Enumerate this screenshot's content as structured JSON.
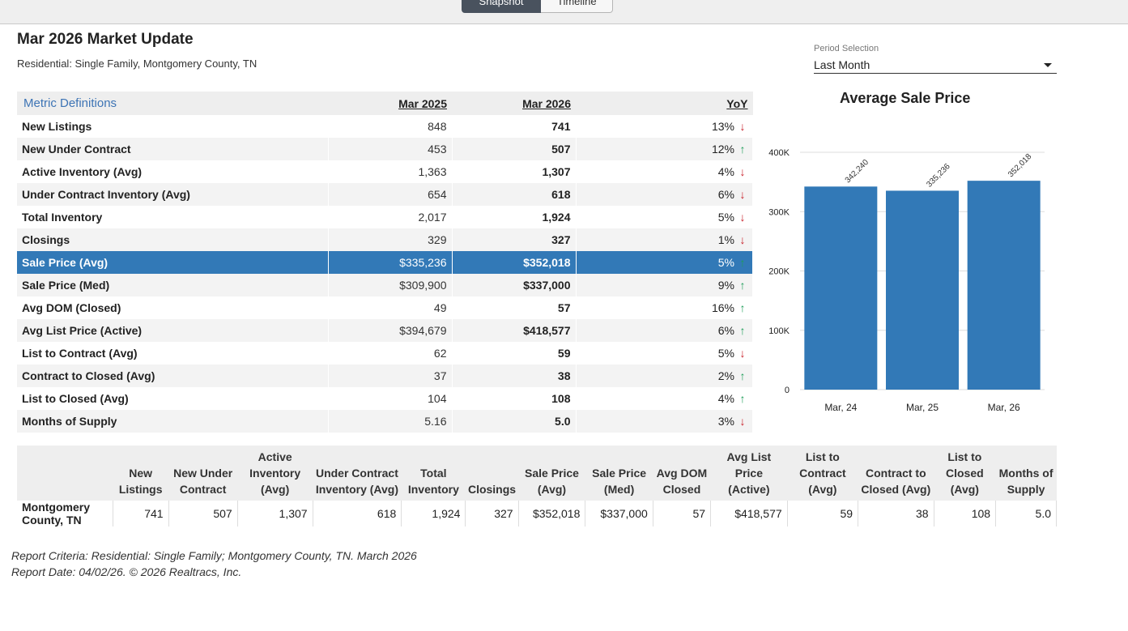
{
  "tabs": [
    {
      "label": "Snapshot",
      "active": true
    },
    {
      "label": "Timeline",
      "active": false
    }
  ],
  "header": {
    "title": "Mar 2026 Market Update",
    "subtitle": "Residential: Single Family, Montgomery County, TN"
  },
  "period": {
    "label": "Period Selection",
    "value": "Last Month"
  },
  "metrics": {
    "headers": {
      "definitions": "Metric Definitions",
      "prev": "Mar 2025",
      "cur": "Mar 2026",
      "yoy": "YoY"
    },
    "rows": [
      {
        "name": "New Listings",
        "prev": "848",
        "cur": "741",
        "yoy": "13%",
        "dir": "down"
      },
      {
        "name": "New Under Contract",
        "prev": "453",
        "cur": "507",
        "yoy": "12%",
        "dir": "up"
      },
      {
        "name": "Active Inventory (Avg)",
        "prev": "1,363",
        "cur": "1,307",
        "yoy": "4%",
        "dir": "down"
      },
      {
        "name": "Under Contract Inventory (Avg)",
        "prev": "654",
        "cur": "618",
        "yoy": "6%",
        "dir": "down"
      },
      {
        "name": "Total Inventory",
        "prev": "2,017",
        "cur": "1,924",
        "yoy": "5%",
        "dir": "down"
      },
      {
        "name": "Closings",
        "prev": "329",
        "cur": "327",
        "yoy": "1%",
        "dir": "down"
      },
      {
        "name": "Sale Price (Avg)",
        "prev": "$335,236",
        "cur": "$352,018",
        "yoy": "5%",
        "dir": "up",
        "highlight": true
      },
      {
        "name": "Sale Price (Med)",
        "prev": "$309,900",
        "cur": "$337,000",
        "yoy": "9%",
        "dir": "up"
      },
      {
        "name": "Avg DOM (Closed)",
        "prev": "49",
        "cur": "57",
        "yoy": "16%",
        "dir": "up"
      },
      {
        "name": "Avg List Price (Active)",
        "prev": "$394,679",
        "cur": "$418,577",
        "yoy": "6%",
        "dir": "up"
      },
      {
        "name": "List to Contract (Avg)",
        "prev": "62",
        "cur": "59",
        "yoy": "5%",
        "dir": "down"
      },
      {
        "name": "Contract to Closed (Avg)",
        "prev": "37",
        "cur": "38",
        "yoy": "2%",
        "dir": "up"
      },
      {
        "name": "List to Closed (Avg)",
        "prev": "104",
        "cur": "108",
        "yoy": "4%",
        "dir": "up"
      },
      {
        "name": "Months of Supply",
        "prev": "5.16",
        "cur": "5.0",
        "yoy": "3%",
        "dir": "down"
      }
    ],
    "arrow_colors": {
      "down": "#c8202a",
      "up": "#1f9e5a"
    }
  },
  "chart_data": {
    "type": "bar",
    "title": "Average Sale Price",
    "categories": [
      "Mar, 24",
      "Mar, 25",
      "Mar, 26"
    ],
    "values": [
      342240,
      335236,
      352018
    ],
    "data_labels": [
      "342,240",
      "335,236",
      "352,018"
    ],
    "ylim": [
      0,
      400000
    ],
    "yticks": [
      0,
      100000,
      200000,
      300000,
      400000
    ],
    "ytick_labels": [
      "0",
      "100K",
      "200K",
      "300K",
      "400K"
    ],
    "grid": true,
    "color": "#3279b7"
  },
  "summary": {
    "headers": [
      "",
      "New Listings",
      "New Under Contract",
      "Active Inventory (Avg)",
      "Under Contract Inventory (Avg)",
      "Total Inventory",
      "Closings",
      "Sale Price (Avg)",
      "Sale Price (Med)",
      "Avg DOM Closed",
      "Avg List Price (Active)",
      "List to Contract (Avg)",
      "Contract to Closed (Avg)",
      "List to Closed (Avg)",
      "Months of Supply"
    ],
    "row": [
      "Montgomery County, TN",
      "741",
      "507",
      "1,307",
      "618",
      "1,924",
      "327",
      "$352,018",
      "$337,000",
      "57",
      "$418,577",
      "59",
      "38",
      "108",
      "5.0"
    ]
  },
  "footer": {
    "criteria": "Report Criteria: Residential: Single Family; Montgomery County, TN. March 2026",
    "date": "Report Date: 04/02/26. © 2026 Realtracs, Inc."
  }
}
